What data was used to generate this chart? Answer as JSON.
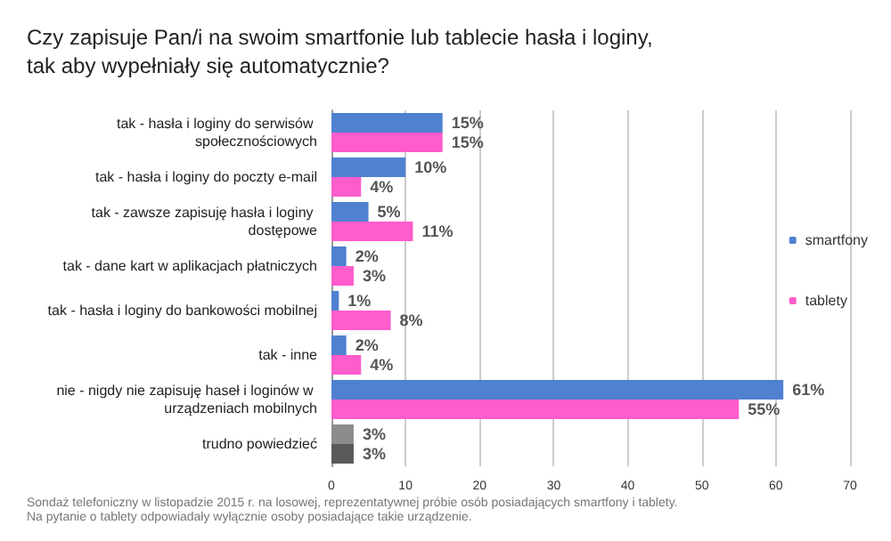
{
  "chart_data": {
    "type": "bar",
    "orientation": "horizontal",
    "title": "Czy zapisuje Pan/i na swoim smartfonie lub tablecie hasła i loginy,\ntak aby wypełniały się automatycznie?",
    "categories": [
      "tak - hasła i loginy do serwisów społecznościowych",
      "tak - hasła i loginy do poczty e-mail",
      "tak - zawsze zapisuję hasła i loginy dostępowe",
      "tak - dane kart w aplikacjach płatniczych",
      "tak - hasła i loginy do bankowości mobilnej",
      "tak - inne",
      "nie - nigdy nie zapisuję haseł i loginów w urządzeniach mobilnych",
      "trudno powiedzieć"
    ],
    "series": [
      {
        "name": "smartfony",
        "color": "#4f81d0",
        "colors": [
          "#4f81d0",
          "#4f81d0",
          "#4f81d0",
          "#4f81d0",
          "#4f81d0",
          "#4f81d0",
          "#4f81d0",
          "#8c8c8c"
        ],
        "values": [
          15,
          10,
          5,
          2,
          1,
          2,
          61,
          3
        ],
        "value_labels": [
          "15%",
          "10%",
          "5%",
          "2%",
          "1%",
          "2%",
          "61%",
          "3%"
        ]
      },
      {
        "name": "tablety",
        "color": "#ff5ccc",
        "colors": [
          "#ff5ccc",
          "#ff5ccc",
          "#ff5ccc",
          "#ff5ccc",
          "#ff5ccc",
          "#ff5ccc",
          "#ff5ccc",
          "#595959"
        ],
        "values": [
          15,
          4,
          11,
          3,
          8,
          4,
          55,
          3
        ],
        "value_labels": [
          "15%",
          "4%",
          "11%",
          "3%",
          "8%",
          "4%",
          "55%",
          "3%"
        ]
      }
    ],
    "xlim": [
      0,
      70
    ],
    "xticks": [
      0,
      10,
      20,
      30,
      40,
      50,
      60,
      70
    ],
    "grid": "x",
    "legend": "right",
    "annotations": [
      "Sondaż telefoniczny w listopadzie 2015 r. na losowej, reprezentatywnej próbie osób posiadających smartfony i tablety.\nNa pytanie o tablety odpowiadały wyłącznie osoby posiadające takie urządzenie."
    ]
  }
}
